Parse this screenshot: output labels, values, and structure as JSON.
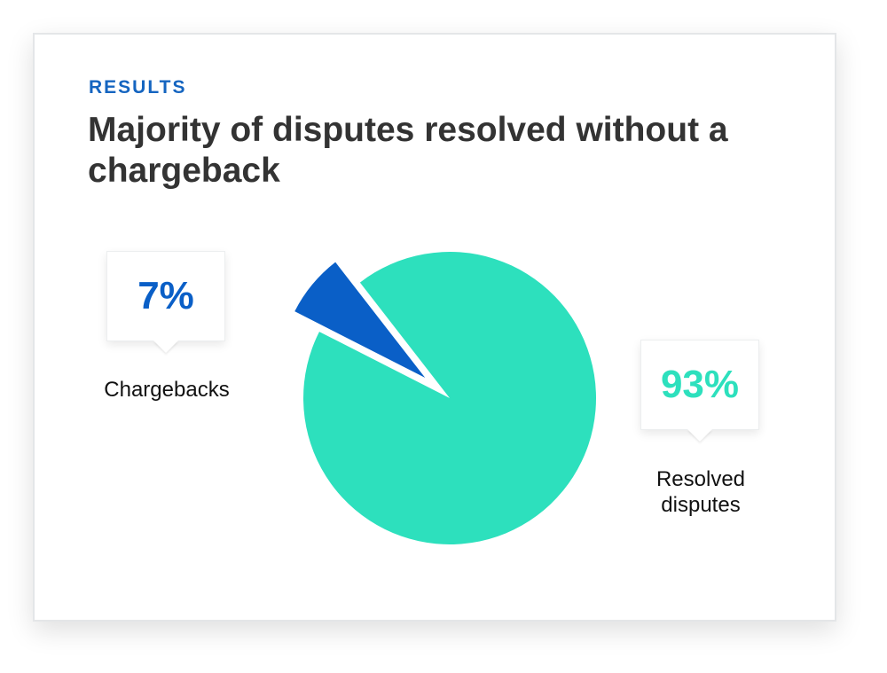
{
  "eyebrow": "RESULTS",
  "title": "Majority of disputes resolved without a chargeback",
  "colors": {
    "chargebacks": "#0a5fc7",
    "resolved": "#2de0bd",
    "eyebrow": "#1565c0",
    "title": "#333333"
  },
  "chart_data": {
    "type": "pie",
    "categories": [
      "Chargebacks",
      "Resolved disputes"
    ],
    "values": [
      7,
      93
    ],
    "value_labels": [
      "7%",
      "93%"
    ],
    "exploded": [
      "Chargebacks"
    ]
  },
  "callouts": {
    "chargebacks": {
      "value": "7%",
      "label": "Chargebacks"
    },
    "resolved": {
      "value": "93%",
      "label": "Resolved\ndisputes"
    }
  }
}
